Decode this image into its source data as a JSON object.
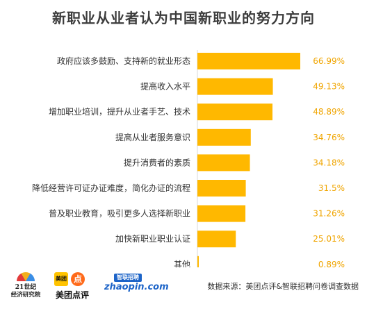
{
  "chart_data": {
    "type": "bar",
    "orientation": "horizontal",
    "title": "新职业从业者认为中国新职业的努力方向",
    "categories": [
      "政府应该多鼓励、支持新的就业形态",
      "提高收入水平",
      "增加职业培训，提升从业者手艺、技术",
      "提高从业者服务意识",
      "提升消费者的素质",
      "降低经营许可证办证难度，简化办证的流程",
      "普及职业教育，吸引更多人选择新职业",
      "加快新职业职业认证",
      "其他"
    ],
    "values": [
      66.99,
      49.13,
      48.89,
      34.76,
      34.18,
      31.5,
      31.26,
      25.01,
      0.89
    ],
    "value_labels": [
      "66.99%",
      "49.13%",
      "48.89%",
      "34.76%",
      "34.18%",
      "31.5%",
      "31.26%",
      "25.01%",
      "0.89%"
    ],
    "unit": "%",
    "bar_color": "#ffb800",
    "label_color": "#f0a500",
    "grid": false,
    "legend": "none"
  },
  "footer": {
    "logo_21": {
      "line1": "21世纪",
      "line2": "经济研究院"
    },
    "logo_meituan": {
      "box": "美团",
      "badge": "点",
      "text": "美团点评"
    },
    "logo_zhaopin": {
      "top": "智联招聘",
      "main": "zhaopin.com"
    },
    "source": "数据来源：美团点评&智联招聘问卷调查数据"
  }
}
